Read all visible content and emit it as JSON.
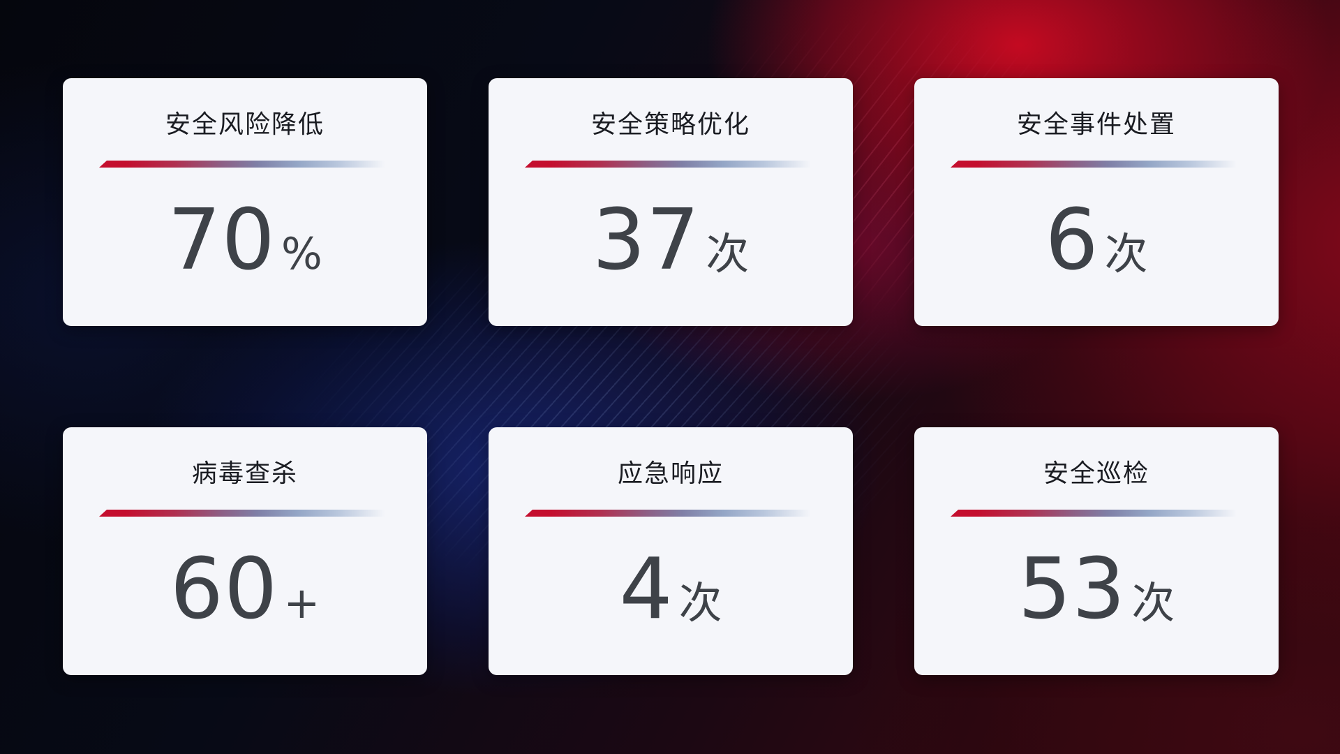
{
  "dashboard": {
    "cards": [
      {
        "title": "安全风险降低",
        "value": "70",
        "unit": "%"
      },
      {
        "title": "安全策略优化",
        "value": "37",
        "unit": "次"
      },
      {
        "title": "安全事件处置",
        "value": "6",
        "unit": "次"
      },
      {
        "title": "病毒查杀",
        "value": "60",
        "unit": "+"
      },
      {
        "title": "应急响应",
        "value": "4",
        "unit": "次"
      },
      {
        "title": "安全巡检",
        "value": "53",
        "unit": "次"
      }
    ],
    "colors": {
      "card_background": "#f5f6fa",
      "title_text": "#1a1c22",
      "value_text": "#3e4248",
      "divider_red": "#c40e2e",
      "divider_steel_blue": "#b9c7dd",
      "background_navy": "#05060d",
      "background_blue_glow": "#16246e",
      "background_red": "#c00a22"
    }
  }
}
